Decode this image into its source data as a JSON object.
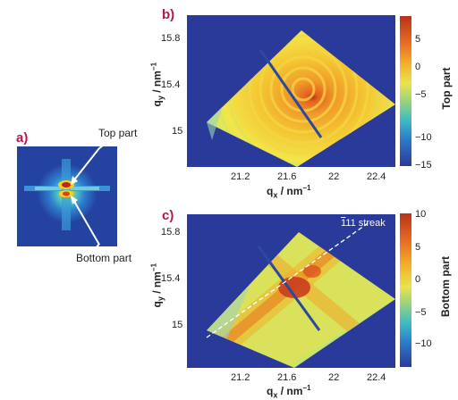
{
  "panel_a": {
    "label": "a)",
    "top_annotation": "Top part",
    "bottom_annotation": "Bottom part"
  },
  "panel_b": {
    "label": "b)",
    "xlabel": "q",
    "xlabel_sub": "x",
    "xlabel_unit": " / nm",
    "xlabel_sup": "−1",
    "ylabel": "q",
    "ylabel_sub": "y",
    "ylabel_unit": " / nm",
    "ylabel_sup": "−1",
    "x_ticks": [
      "21.2",
      "21.6",
      "22",
      "22.4"
    ],
    "y_ticks": [
      "15.8",
      "15.4",
      "15"
    ],
    "colorbar_label": "Top part",
    "colorbar_ticks": [
      "5",
      "0",
      "−5",
      "−10",
      "−15"
    ]
  },
  "panel_c": {
    "label": "c)",
    "xlabel": "q",
    "xlabel_sub": "x",
    "xlabel_unit": " / nm",
    "xlabel_sup": "−1",
    "ylabel": "q",
    "ylabel_sub": "y",
    "ylabel_unit": " / nm",
    "ylabel_sup": "−1",
    "x_ticks": [
      "21.2",
      "21.6",
      "22",
      "22.4"
    ],
    "y_ticks": [
      "15.8",
      "15.4",
      "15"
    ],
    "colorbar_label": "Bottom part",
    "colorbar_ticks": [
      "10",
      "5",
      "0",
      "−5",
      "−10"
    ],
    "streak_label_bar": "1",
    "streak_label_rest": "11 streak"
  },
  "colors": {
    "panel_label": "#b5174e",
    "background_map": "#2a3a9a",
    "detector_line": "#2b4a9c",
    "arrow": "#ffffff"
  }
}
